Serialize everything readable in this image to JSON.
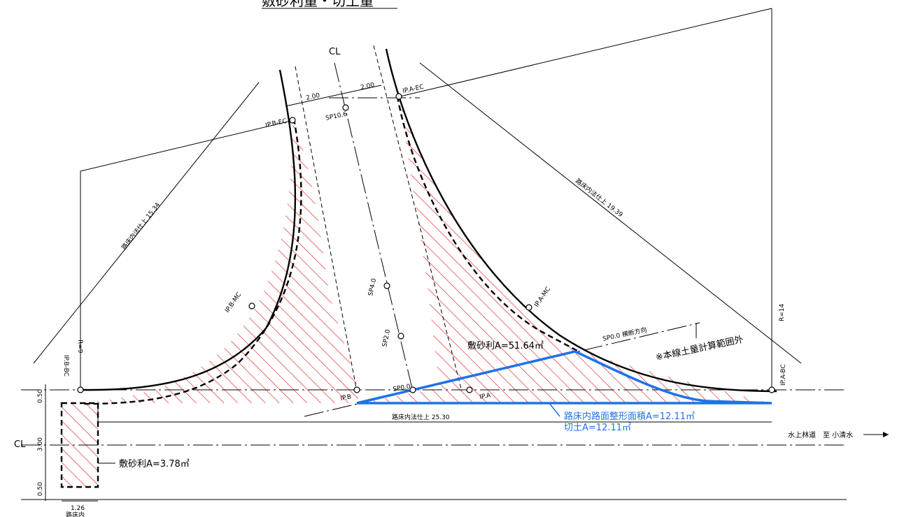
{
  "title": "敷砂利量・切土量",
  "areas": {
    "main_gravel": "敷砂利A=51.64㎡",
    "side_gravel": "敷砂利A=3.78㎡",
    "subgrade_shaping": "路床内路面整形面積A=12.11㎡",
    "cut": "切土A=12.11㎡"
  },
  "note_outside": "※本線土量計算範囲外",
  "road_label": "水上林道　至 小清水",
  "dimensions": {
    "width_left": "2.00",
    "width_right": "2.00",
    "left_curve_len": "路床内法仕上 15.34",
    "right_curve_len": "路床内法仕上 19.39",
    "bottom_len": "路床内法仕上 25.30",
    "r_left": "R=9",
    "r_right": "R=14",
    "v_top": "0.50",
    "v_mid": "3.00",
    "v_bot": "0.50",
    "b_width": "1.26",
    "b_width_sub": "路床内"
  },
  "points": {
    "ip_b_ec": "IP.B-EC",
    "ip_a_ec": "IP.A-EC",
    "ip_b_mc": "IP.B-MC",
    "ip_a_mc": "IP.A-MC",
    "ip_b_bc": "IP.B-BC",
    "ip_a_bc": "IP.A-BC",
    "ip_b": "IP.B",
    "ip_a": "IP.A",
    "sp106": "SP10.6",
    "sp40": "SP4.0",
    "sp20": "SP2.0",
    "sp00": "SP0.0",
    "sp00_cross": "SP0.0 横断方向"
  },
  "centerline_mark": "CL",
  "colors": {
    "hatch": "#e02020",
    "blue": "#1e73e8",
    "line": "#000000"
  }
}
